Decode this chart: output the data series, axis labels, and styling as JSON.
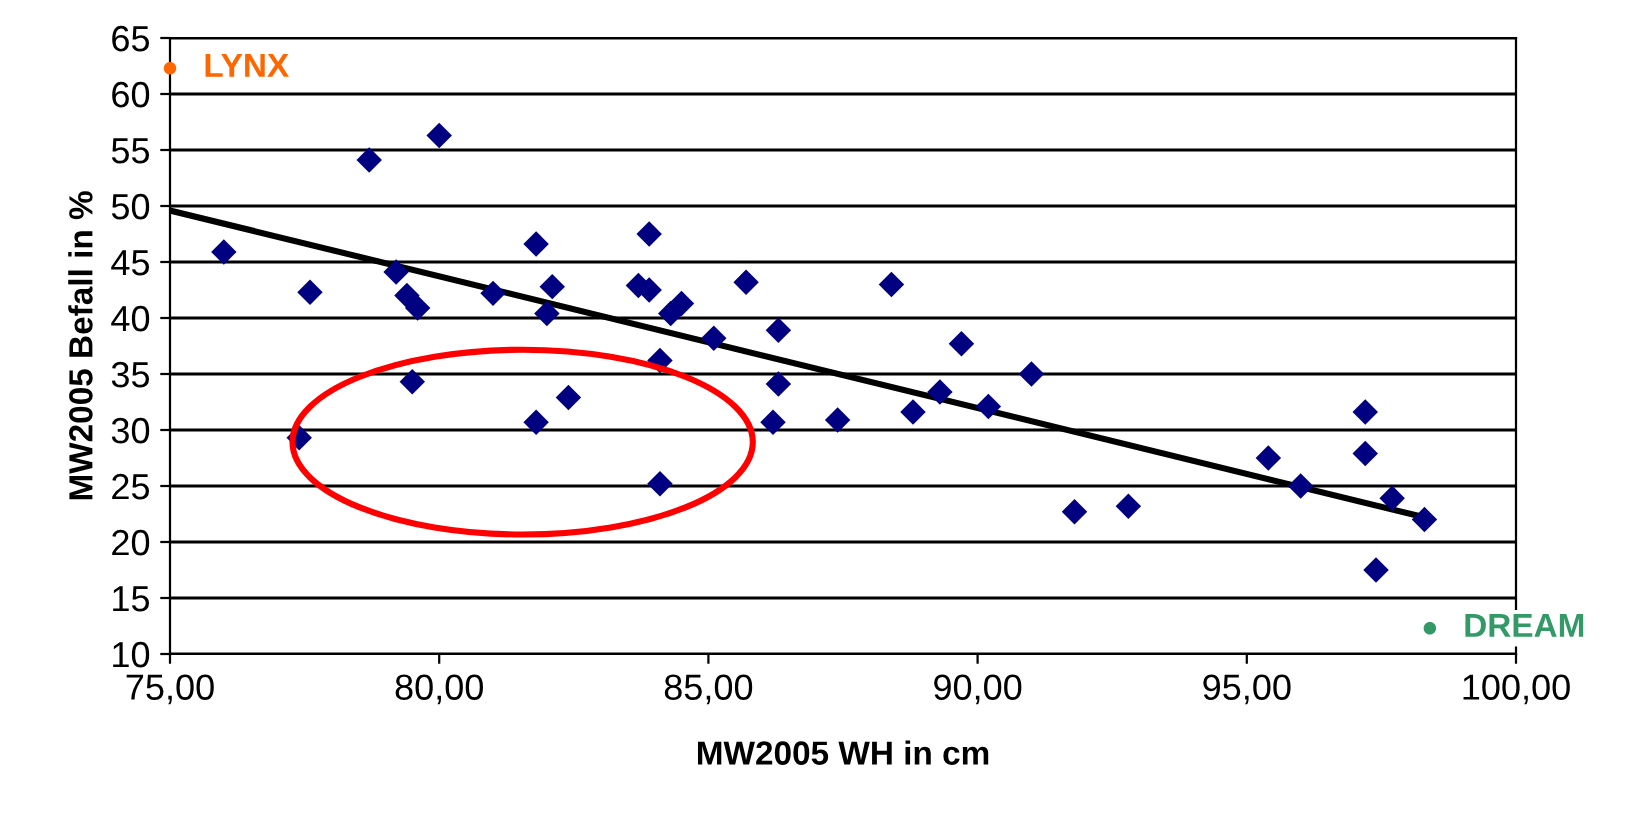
{
  "chart_data": {
    "type": "scatter",
    "xlabel": "MW2005 WH in cm",
    "ylabel": "MW2005 Befall in %",
    "xlim": [
      75,
      100
    ],
    "xticks": [
      {
        "value": 75,
        "label": "75,00"
      },
      {
        "value": 80,
        "label": "80,00"
      },
      {
        "value": 85,
        "label": "85,00"
      },
      {
        "value": 90,
        "label": "90,00"
      },
      {
        "value": 95,
        "label": "95,00"
      },
      {
        "value": 100,
        "label": "100,00"
      }
    ],
    "ylim": [
      10,
      65
    ],
    "yticks": [
      10,
      15,
      20,
      25,
      30,
      35,
      40,
      45,
      50,
      55,
      60,
      65
    ],
    "grid": "y",
    "legend": false,
    "series": [
      {
        "color": "#000080",
        "marker": "diamond",
        "x": [
          76.0,
          77.6,
          77.4,
          78.7,
          80.0,
          79.2,
          79.4,
          79.6,
          79.5,
          81.0,
          81.8,
          82.1,
          82.0,
          81.8,
          82.4,
          83.7,
          83.9,
          83.9,
          84.1,
          84.3,
          84.5,
          84.1,
          85.1,
          85.7,
          86.3,
          86.3,
          86.2,
          87.4,
          88.4,
          88.8,
          89.3,
          89.7,
          90.2,
          91.0,
          91.8,
          92.8,
          95.4,
          96.0,
          97.2,
          97.2,
          97.7,
          97.4,
          98.3
        ],
        "values": [
          45.9,
          42.3,
          29.3,
          54.1,
          56.3,
          44.1,
          42.0,
          40.9,
          34.3,
          42.2,
          46.6,
          42.8,
          40.4,
          30.7,
          32.9,
          42.9,
          42.5,
          47.5,
          36.2,
          40.4,
          41.3,
          25.2,
          38.2,
          43.2,
          38.9,
          34.1,
          30.7,
          30.9,
          43.0,
          31.6,
          33.4,
          37.7,
          32.1,
          35.0,
          22.7,
          23.2,
          27.5,
          25.0,
          31.6,
          27.9,
          23.9,
          17.5,
          22.0
        ]
      },
      {
        "name": "LYNX",
        "color": "#ff6600",
        "marker": "circle",
        "x": [
          75.0
        ],
        "values": [
          62.3
        ]
      },
      {
        "name": "DREAM",
        "color": "#339966",
        "marker": "circle",
        "x": [
          98.4
        ],
        "values": [
          12.3
        ]
      },
      {
        "type": "line",
        "color": "#000000",
        "marker": "none",
        "x": [
          75.0,
          98.3
        ],
        "values": [
          49.6,
          22.2
        ]
      }
    ]
  }
}
